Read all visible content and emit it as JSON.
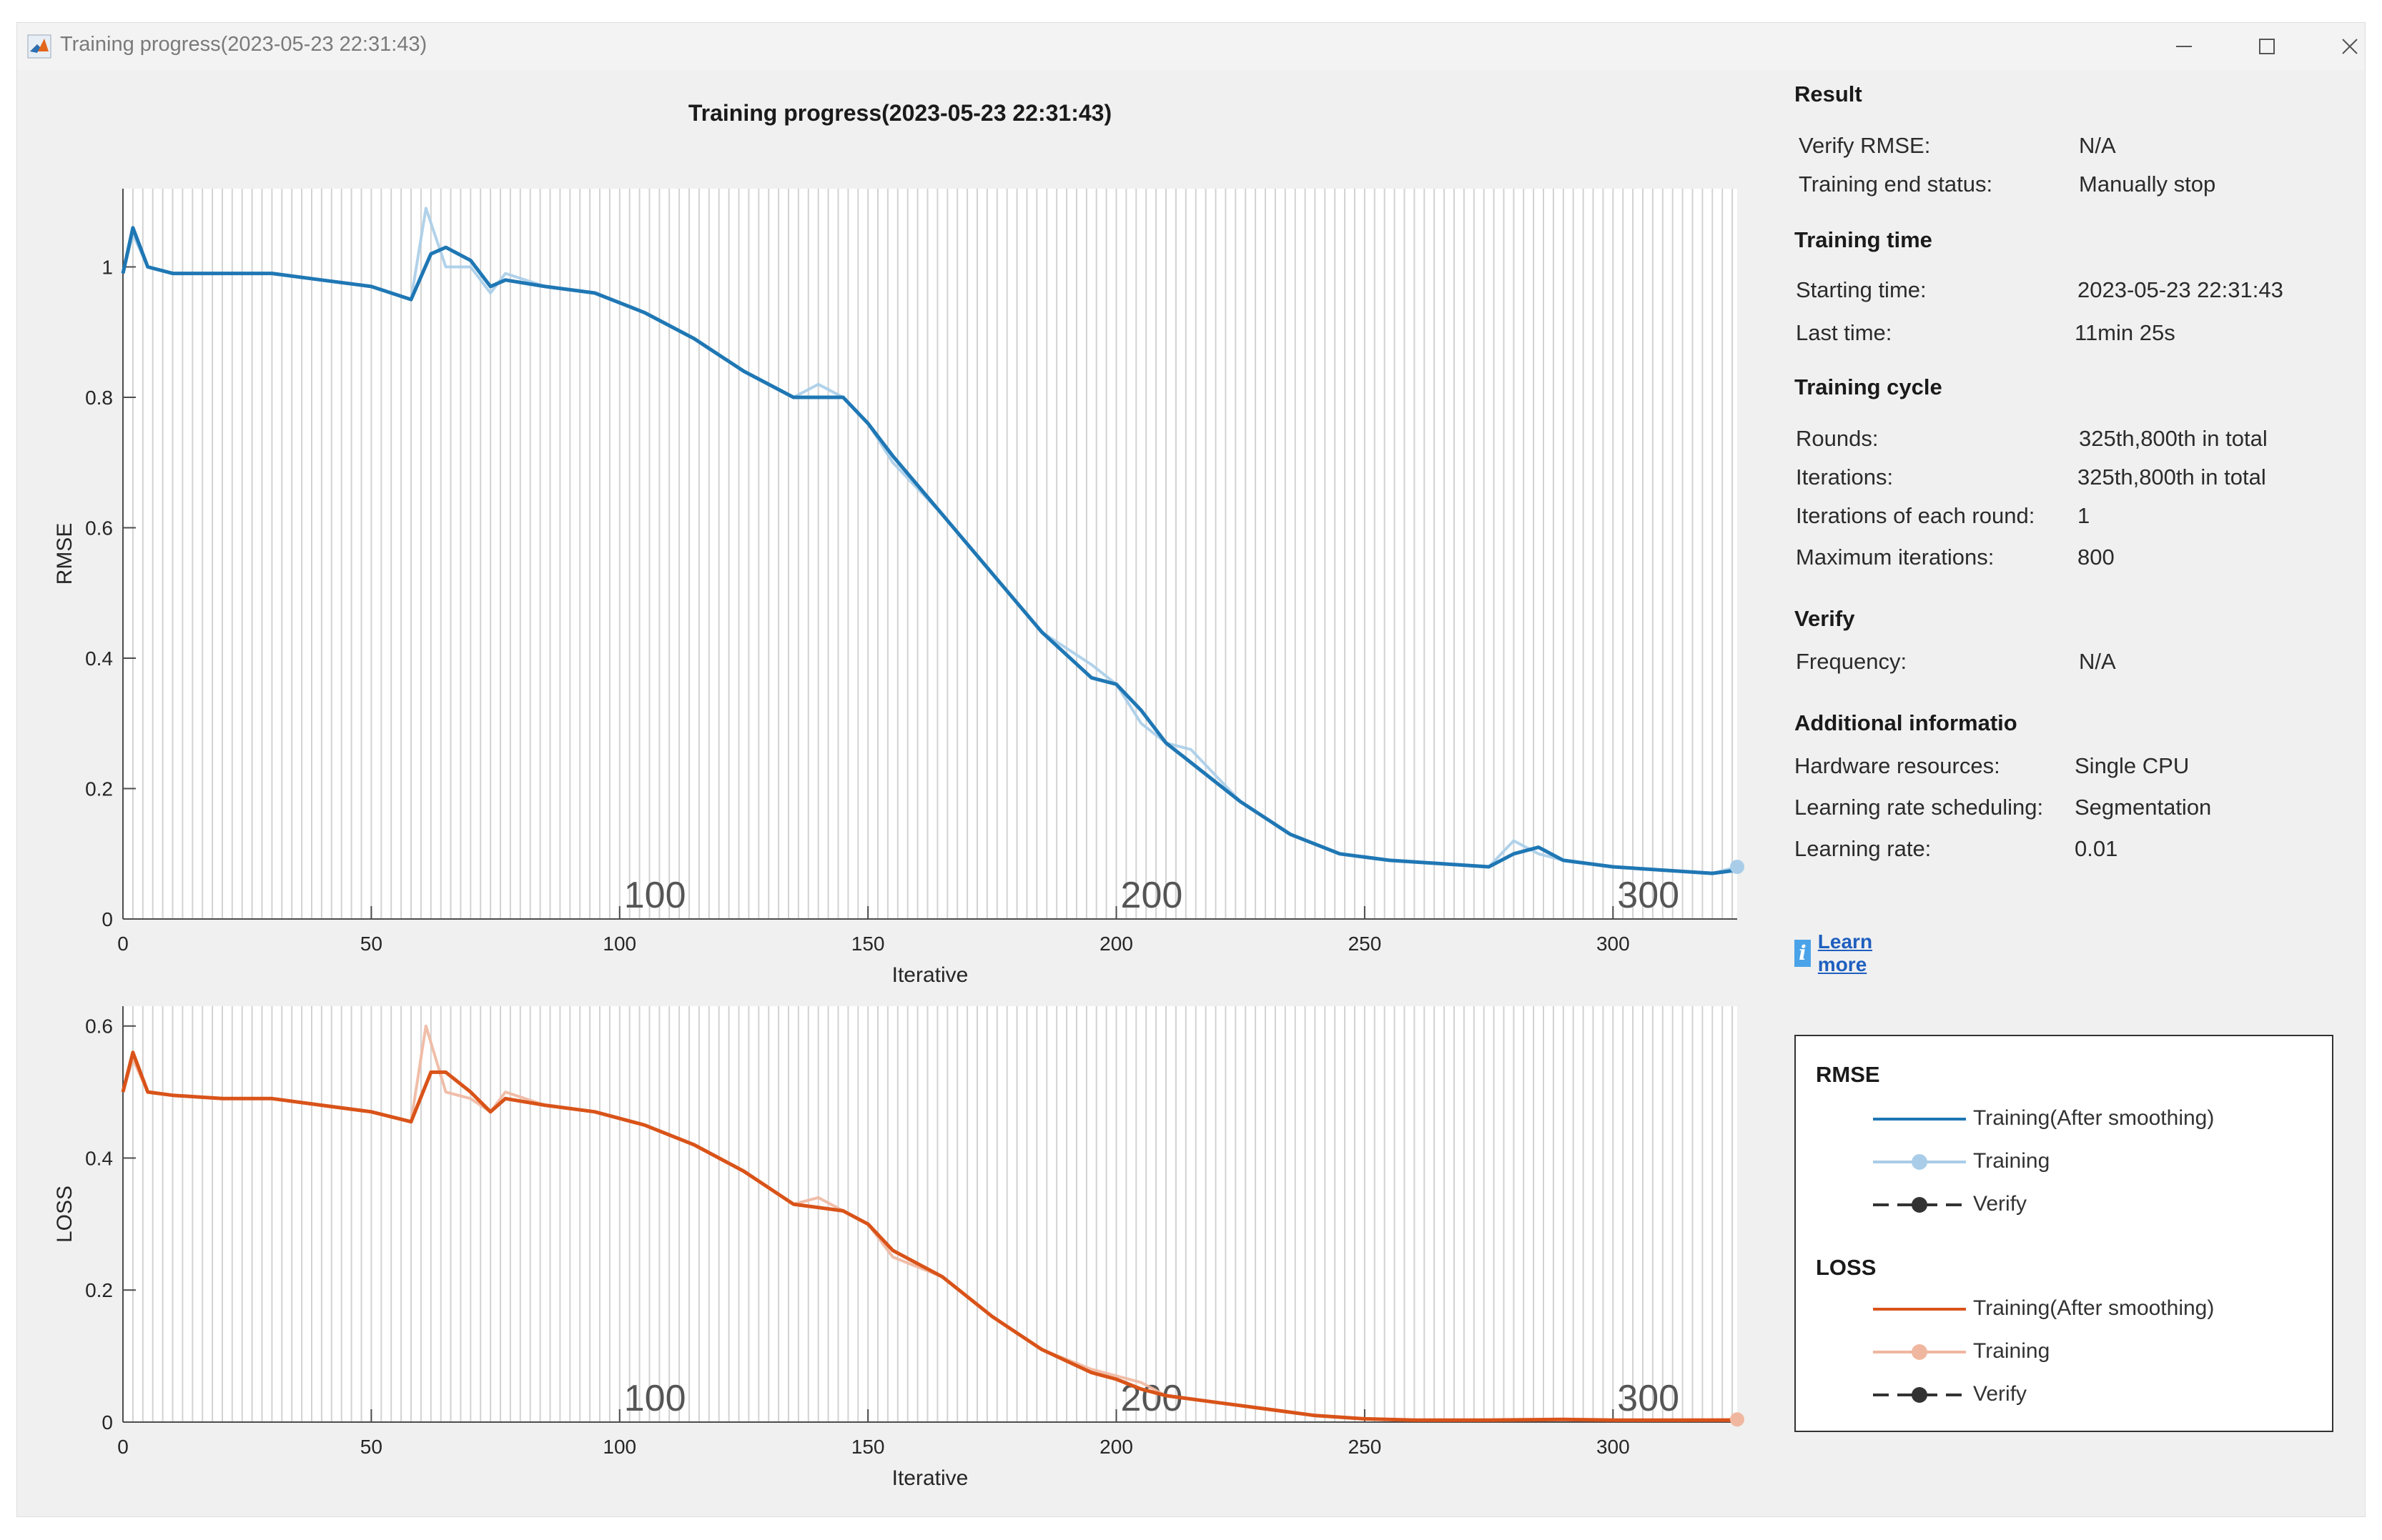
{
  "window": {
    "title": "Training progress(2023-05-23 22:31:43)",
    "controls": {
      "minimize": "minimize",
      "maximize": "maximize",
      "close": "close"
    }
  },
  "main_title": "Training progress(2023-05-23 22:31:43)",
  "colors": {
    "rmse_smooth": "#1f77b4",
    "rmse_raw": "#a9cde8",
    "loss_smooth": "#d95319",
    "loss_raw": "#f0b7a0",
    "verify": "#333333",
    "link": "#1f5fbf"
  },
  "chart_data": [
    {
      "type": "line",
      "ylabel": "RMSE",
      "xlabel": "Iterative",
      "xlim": [
        0,
        325
      ],
      "ylim": [
        0,
        1.12
      ],
      "xticks": [
        "0",
        "50",
        "100",
        "150",
        "200",
        "250",
        "300"
      ],
      "yticks": [
        "0",
        "0.2",
        "0.4",
        "0.6",
        "0.8",
        "1"
      ],
      "overlay_labels": [
        "100",
        "200",
        "300"
      ],
      "series": [
        {
          "name": "Training(After smoothing)",
          "x": [
            0,
            2,
            5,
            10,
            20,
            30,
            40,
            50,
            58,
            62,
            65,
            70,
            74,
            77,
            85,
            95,
            105,
            115,
            125,
            135,
            145,
            150,
            155,
            165,
            175,
            185,
            195,
            200,
            205,
            210,
            215,
            225,
            235,
            245,
            255,
            265,
            275,
            280,
            285,
            290,
            300,
            310,
            320,
            325
          ],
          "y": [
            0.99,
            1.06,
            1.0,
            0.99,
            0.99,
            0.99,
            0.98,
            0.97,
            0.95,
            1.02,
            1.03,
            1.01,
            0.97,
            0.98,
            0.97,
            0.96,
            0.93,
            0.89,
            0.84,
            0.8,
            0.8,
            0.76,
            0.71,
            0.62,
            0.53,
            0.44,
            0.37,
            0.36,
            0.32,
            0.27,
            0.24,
            0.18,
            0.13,
            0.1,
            0.09,
            0.085,
            0.08,
            0.1,
            0.11,
            0.09,
            0.08,
            0.075,
            0.07,
            0.075
          ]
        },
        {
          "name": "Training",
          "x": [
            0,
            2,
            5,
            10,
            20,
            30,
            40,
            50,
            58,
            61,
            65,
            70,
            74,
            77,
            85,
            95,
            105,
            115,
            125,
            135,
            140,
            145,
            150,
            155,
            165,
            175,
            185,
            195,
            200,
            205,
            210,
            215,
            225,
            235,
            245,
            255,
            265,
            275,
            280,
            285,
            290,
            300,
            310,
            320,
            325
          ],
          "y": [
            0.99,
            1.05,
            1.0,
            0.99,
            0.99,
            0.99,
            0.98,
            0.97,
            0.95,
            1.09,
            1.0,
            1.0,
            0.96,
            0.99,
            0.97,
            0.96,
            0.93,
            0.89,
            0.84,
            0.8,
            0.82,
            0.8,
            0.76,
            0.7,
            0.62,
            0.53,
            0.44,
            0.39,
            0.36,
            0.3,
            0.27,
            0.26,
            0.18,
            0.13,
            0.1,
            0.09,
            0.085,
            0.08,
            0.12,
            0.1,
            0.09,
            0.08,
            0.075,
            0.07,
            0.08
          ]
        },
        {
          "name": "Verify",
          "x": [],
          "y": []
        }
      ]
    },
    {
      "type": "line",
      "ylabel": "LOSS",
      "xlabel": "Iterative",
      "xlim": [
        0,
        325
      ],
      "ylim": [
        0,
        0.63
      ],
      "xticks": [
        "0",
        "50",
        "100",
        "150",
        "200",
        "250",
        "300"
      ],
      "yticks": [
        "0",
        "0.2",
        "0.4",
        "0.6"
      ],
      "overlay_labels": [
        "100",
        "200",
        "300"
      ],
      "series": [
        {
          "name": "Training(After smoothing)",
          "x": [
            0,
            2,
            5,
            10,
            20,
            30,
            40,
            50,
            58,
            62,
            65,
            70,
            74,
            77,
            85,
            95,
            105,
            115,
            125,
            135,
            145,
            150,
            155,
            165,
            175,
            185,
            195,
            200,
            205,
            210,
            220,
            230,
            240,
            250,
            260,
            275,
            290,
            300,
            310,
            325
          ],
          "y": [
            0.5,
            0.56,
            0.5,
            0.495,
            0.49,
            0.49,
            0.48,
            0.47,
            0.455,
            0.53,
            0.53,
            0.5,
            0.47,
            0.49,
            0.48,
            0.47,
            0.45,
            0.42,
            0.38,
            0.33,
            0.32,
            0.3,
            0.26,
            0.22,
            0.16,
            0.11,
            0.075,
            0.065,
            0.05,
            0.04,
            0.03,
            0.02,
            0.01,
            0.005,
            0.003,
            0.003,
            0.004,
            0.003,
            0.003,
            0.003
          ]
        },
        {
          "name": "Training",
          "x": [
            0,
            2,
            5,
            10,
            20,
            30,
            40,
            50,
            58,
            61,
            65,
            70,
            74,
            77,
            85,
            95,
            105,
            115,
            125,
            135,
            140,
            145,
            150,
            155,
            165,
            175,
            185,
            195,
            200,
            205,
            210,
            220,
            230,
            240,
            250,
            260,
            275,
            290,
            300,
            310,
            325
          ],
          "y": [
            0.5,
            0.55,
            0.5,
            0.495,
            0.49,
            0.49,
            0.48,
            0.47,
            0.455,
            0.6,
            0.5,
            0.49,
            0.47,
            0.5,
            0.48,
            0.47,
            0.45,
            0.42,
            0.38,
            0.33,
            0.34,
            0.32,
            0.3,
            0.25,
            0.22,
            0.16,
            0.11,
            0.08,
            0.07,
            0.06,
            0.04,
            0.03,
            0.02,
            0.01,
            0.005,
            0.003,
            0.003,
            0.004,
            0.003,
            0.003,
            0.004
          ]
        },
        {
          "name": "Verify",
          "x": [],
          "y": []
        }
      ]
    }
  ],
  "side": {
    "result": {
      "heading": "Result",
      "verify_rmse_label": "Verify RMSE:",
      "verify_rmse_value": "N/A",
      "end_status_label": "Training end status:",
      "end_status_value": "Manually stop"
    },
    "time": {
      "heading": "Training time",
      "start_label": "Starting time:",
      "start_value": "2023-05-23 22:31:43",
      "last_label": "Last time:",
      "last_value": "11min 25s"
    },
    "cycle": {
      "heading": "Training cycle",
      "rounds_label": "Rounds:",
      "rounds_value": "325th,800th in total",
      "iterations_label": "Iterations:",
      "iterations_value": "325th,800th in total",
      "per_round_label": "Iterations of each round:",
      "per_round_value": "1",
      "max_label": "Maximum iterations:",
      "max_value": "800"
    },
    "verify": {
      "heading": "Verify",
      "freq_label": "Frequency:",
      "freq_value": "N/A"
    },
    "additional": {
      "heading": "Additional informatio",
      "hw_label": "Hardware resources:",
      "hw_value": "Single CPU",
      "lr_sched_label": "Learning rate scheduling:",
      "lr_sched_value": "Segmentation",
      "lr_label": "Learning rate:",
      "lr_value": "0.01"
    },
    "learn_more": "Learn more",
    "info_glyph": "i"
  },
  "legend": {
    "rmse_heading": "RMSE",
    "loss_heading": "LOSS",
    "smooth_label": "Training(After smoothing)",
    "training_label": "Training",
    "verify_label": "Verify"
  }
}
